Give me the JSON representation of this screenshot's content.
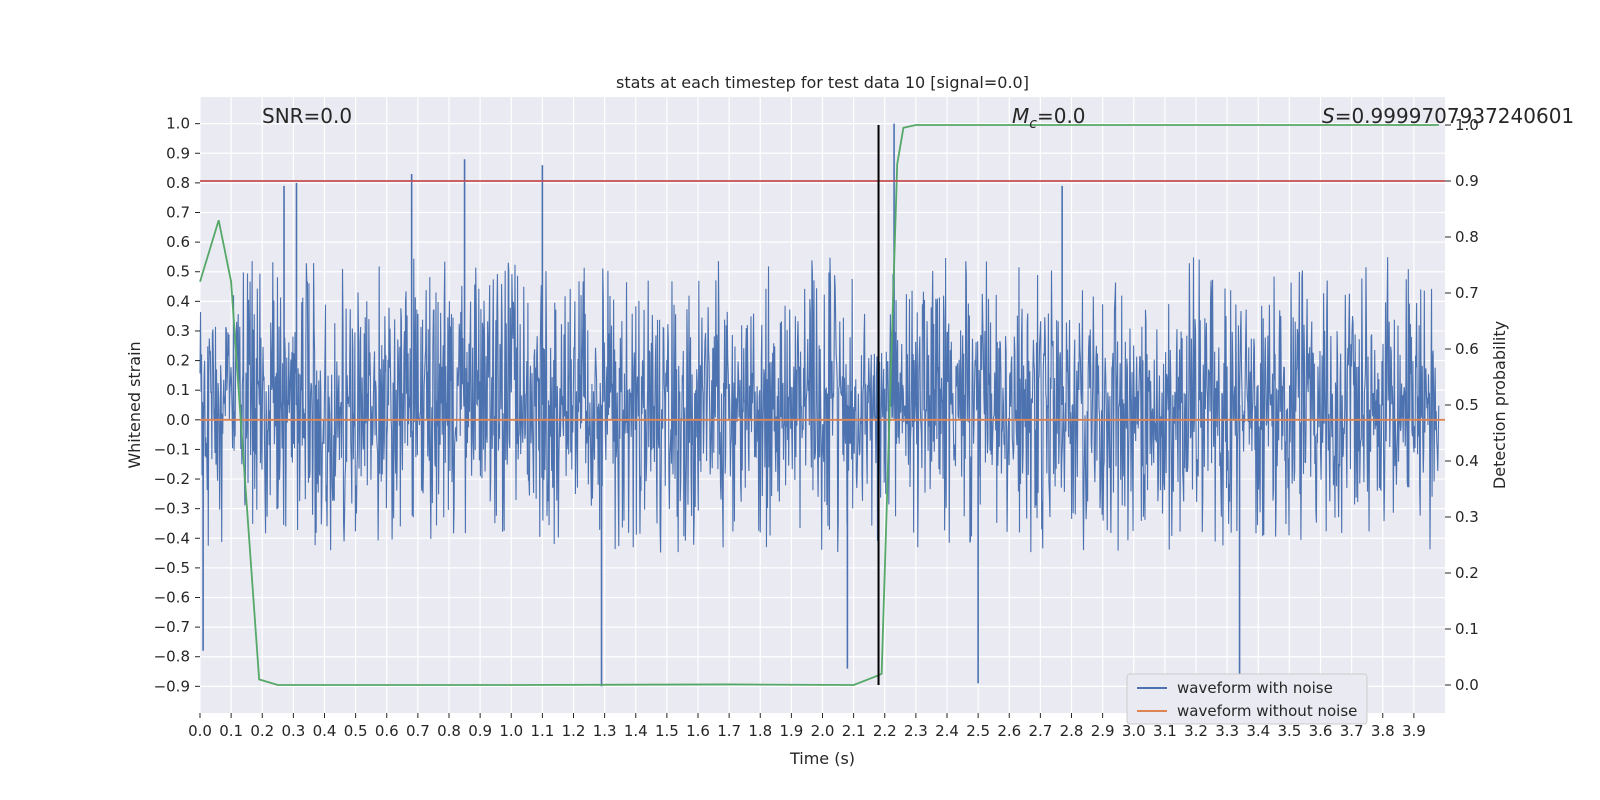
{
  "chart_data": {
    "type": "line",
    "title": "stats at each timestep for test data 10 [signal=0.0]",
    "xlabel": "Time (s)",
    "ylabel": "Whitened strain",
    "y2label": "Detection probability",
    "xlim": [
      0.0,
      4.0
    ],
    "ylim": [
      -0.99,
      1.09
    ],
    "y2lim": [
      -0.05,
      1.05
    ],
    "x_ticks": [
      0.0,
      0.1,
      0.2,
      0.3,
      0.4,
      0.5,
      0.6,
      0.7,
      0.8,
      0.9,
      1.0,
      1.1,
      1.2,
      1.3,
      1.4,
      1.5,
      1.6,
      1.7,
      1.8,
      1.9,
      2.0,
      2.1,
      2.2,
      2.3,
      2.4,
      2.5,
      2.6,
      2.7,
      2.8,
      2.9,
      3.0,
      3.1,
      3.2,
      3.3,
      3.4,
      3.5,
      3.6,
      3.7,
      3.8,
      3.9
    ],
    "x_tick_labels": [
      "0.0",
      "0.1",
      "0.2",
      "0.3",
      "0.4",
      "0.5",
      "0.6",
      "0.7",
      "0.8",
      "0.9",
      "1.0",
      "1.1",
      "1.2",
      "1.3",
      "1.4",
      "1.5",
      "1.6",
      "1.7",
      "1.8",
      "1.9",
      "2.0",
      "2.1",
      "2.2",
      "2.3",
      "2.4",
      "2.5",
      "2.6",
      "2.7",
      "2.8",
      "2.9",
      "3.0",
      "3.1",
      "3.2",
      "3.3",
      "3.4",
      "3.5",
      "3.6",
      "3.7",
      "3.8",
      "3.9"
    ],
    "y_ticks": [
      1.0,
      0.9,
      0.8,
      0.7,
      0.6,
      0.5,
      0.4,
      0.3,
      0.2,
      0.1,
      0.0,
      -0.1,
      -0.2,
      -0.3,
      -0.4,
      -0.5,
      -0.6,
      -0.7,
      -0.8,
      -0.9
    ],
    "y_tick_labels": [
      "1.0",
      "0.9",
      "0.8",
      "0.7",
      "0.6",
      "0.5",
      "0.4",
      "0.3",
      "0.2",
      "0.1",
      "0.0",
      "−0.1",
      "−0.2",
      "−0.3",
      "−0.4",
      "−0.5",
      "−0.6",
      "−0.7",
      "−0.8",
      "−0.9"
    ],
    "y2_ticks": [
      1.0,
      0.9,
      0.8,
      0.7,
      0.6,
      0.5,
      0.4,
      0.3,
      0.2,
      0.1,
      0.0
    ],
    "y2_tick_labels": [
      "1.0",
      "0.9",
      "0.8",
      "0.7",
      "0.6",
      "0.5",
      "0.4",
      "0.3",
      "0.2",
      "0.1",
      "0.0"
    ],
    "annotations": {
      "snr": "SNR=0.0",
      "mc_symbol": "M",
      "mc_sub": "c",
      "mc_value": "=0.0",
      "s_symbol": "S",
      "s_value": "=0.9999707937240601"
    },
    "series": [
      {
        "name": "waveform with noise",
        "color": "#4c72b0",
        "kind": "dense-noise",
        "typical_range": [
          -0.45,
          0.55
        ],
        "peaks": [
          {
            "x": 0.27,
            "y": 0.79
          },
          {
            "x": 0.31,
            "y": 0.8
          },
          {
            "x": 0.68,
            "y": 0.83
          },
          {
            "x": 0.85,
            "y": 0.88
          },
          {
            "x": 1.1,
            "y": 0.86
          },
          {
            "x": 2.23,
            "y": 1.0
          },
          {
            "x": 2.77,
            "y": 0.79
          },
          {
            "x": 0.01,
            "y": -0.78
          },
          {
            "x": 1.29,
            "y": -0.9
          },
          {
            "x": 2.08,
            "y": -0.84
          },
          {
            "x": 2.5,
            "y": -0.89
          },
          {
            "x": 3.34,
            "y": -0.86
          }
        ]
      },
      {
        "name": "waveform without noise",
        "color": "#dd8452",
        "x": [
          0.0,
          4.0
        ],
        "y": [
          0.0,
          0.0
        ]
      },
      {
        "name": "detection probability",
        "color": "#55a868",
        "axis": "right",
        "x": [
          0.0,
          0.06,
          0.1,
          0.13,
          0.19,
          0.25,
          1.0,
          1.7,
          2.1,
          2.17,
          2.19,
          2.24,
          2.26,
          2.3,
          3.98
        ],
        "y": [
          0.72,
          0.83,
          0.72,
          0.48,
          0.01,
          0.0,
          0.0,
          0.001,
          0.0,
          0.015,
          0.02,
          0.93,
          0.995,
          1.0,
          1.0
        ]
      },
      {
        "name": "threshold",
        "color": "#c44e52",
        "axis": "right",
        "x": [
          0.0,
          4.0
        ],
        "y": [
          0.9,
          0.9
        ]
      },
      {
        "name": "marker",
        "color": "#000000",
        "axis": "right",
        "x": [
          2.18,
          2.18
        ],
        "y": [
          0.0,
          1.0
        ]
      }
    ],
    "legend": {
      "position": "bottom-right",
      "entries": [
        {
          "label": "waveform with noise",
          "color": "#4c72b0"
        },
        {
          "label": "waveform without noise",
          "color": "#dd8452"
        }
      ]
    },
    "grid": true,
    "colors": {
      "background": "#eaeaf2",
      "grid": "#ffffff",
      "text": "#262626"
    }
  }
}
